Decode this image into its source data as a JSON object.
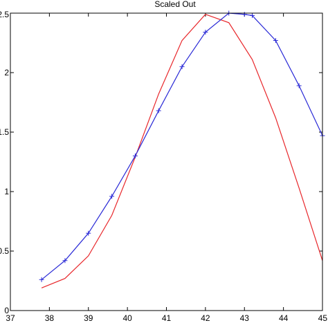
{
  "chart_data": {
    "type": "line",
    "title": "Scaled Out",
    "xlabel": "",
    "ylabel": "",
    "xlim": [
      37,
      45
    ],
    "ylim": [
      0,
      2.5
    ],
    "grid": false,
    "xticks": [
      37,
      38,
      39,
      40,
      41,
      42,
      43,
      44,
      45
    ],
    "yticks": [
      0,
      0.5,
      1,
      1.5,
      2,
      2.5
    ],
    "xtick_labels": [
      "37",
      "38",
      "39",
      "40",
      "41",
      "42",
      "43",
      "44",
      "45"
    ],
    "ytick_labels": [
      "0",
      "0.5",
      "1",
      "1.5",
      "2",
      "2.5"
    ],
    "series": [
      {
        "color": "#e8262a",
        "marker": "none",
        "x": [
          37.8,
          38.4,
          39.0,
          39.6,
          40.2,
          40.8,
          41.4,
          42.0,
          42.6,
          43.2,
          43.8,
          44.4,
          45.0
        ],
        "y": [
          0.19,
          0.27,
          0.46,
          0.8,
          1.29,
          1.82,
          2.27,
          2.49,
          2.42,
          2.11,
          1.62,
          1.03,
          0.42
        ]
      },
      {
        "color": "#2929d6",
        "marker": "plus",
        "x": [
          37.8,
          38.4,
          39.0,
          39.6,
          40.2,
          40.8,
          41.4,
          42.0,
          42.6,
          43.0,
          43.2,
          43.8,
          44.4,
          45.0
        ],
        "y": [
          0.26,
          0.42,
          0.65,
          0.96,
          1.3,
          1.68,
          2.05,
          2.34,
          2.5,
          2.49,
          2.48,
          2.27,
          1.89,
          1.47
        ]
      }
    ]
  }
}
